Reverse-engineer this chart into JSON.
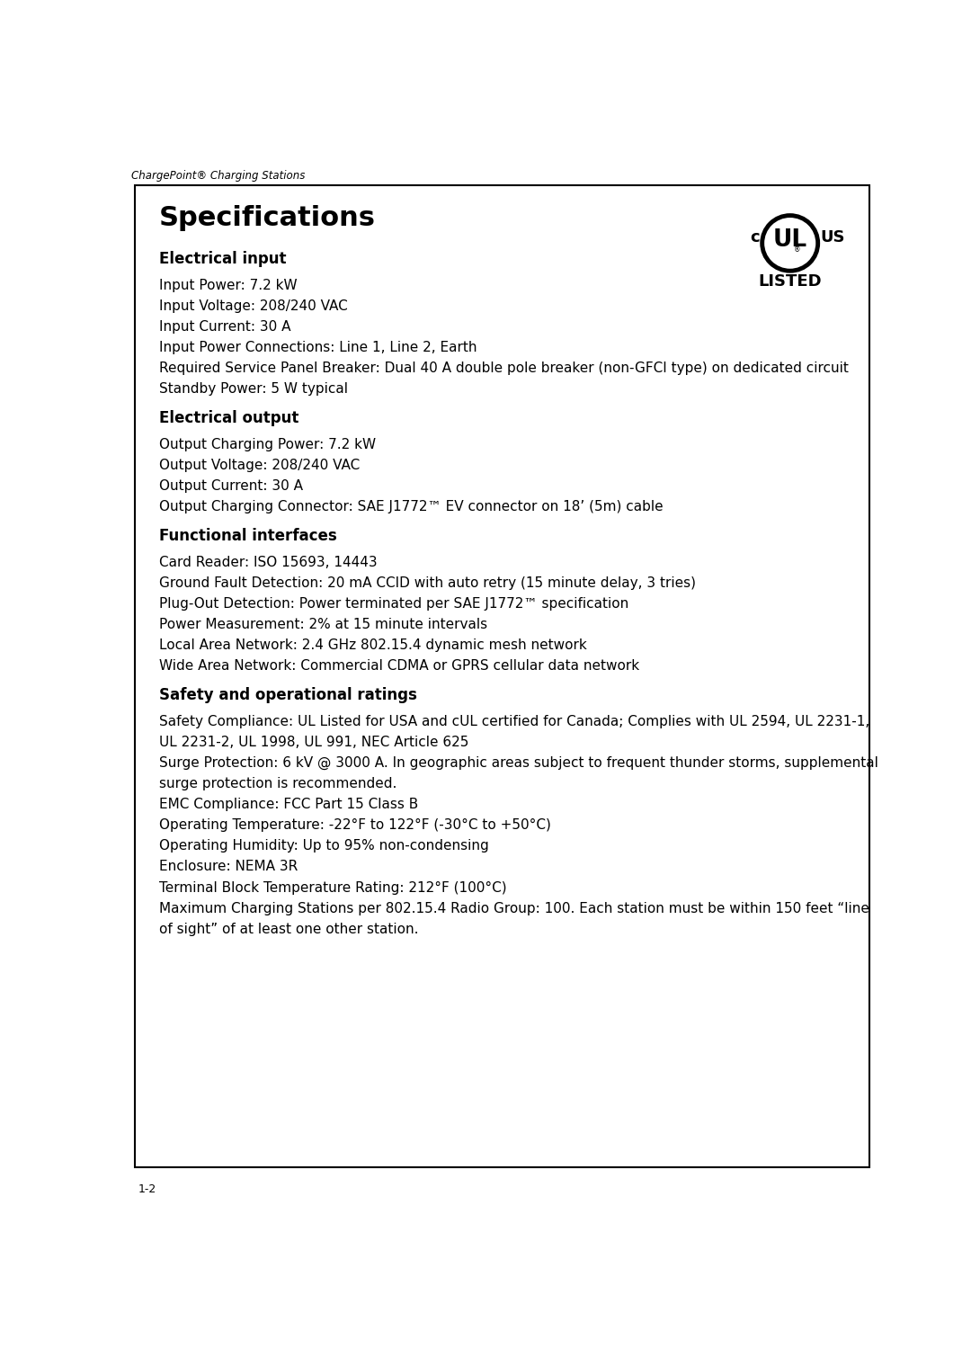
{
  "header_text": "ChargePoint® Charging Stations",
  "page_number": "1-2",
  "title": "Specifications",
  "bg_color": "#ffffff",
  "border_color": "#000000",
  "title_color": "#000000",
  "title_fontsize": 22,
  "section_fontsize": 12,
  "body_fontsize": 11,
  "sections": [
    {
      "heading": "Electrical input",
      "items": [
        "Input Power: 7.2 kW",
        "Input Voltage: 208/240 VAC",
        "Input Current: 30 A",
        "Input Power Connections: Line 1, Line 2, Earth",
        "Required Service Panel Breaker: Dual 40 A double pole breaker (non-GFCI type) on dedicated circuit",
        "Standby Power: 5 W typical"
      ]
    },
    {
      "heading": "Electrical output",
      "items": [
        "Output Charging Power: 7.2 kW",
        "Output Voltage: 208/240 VAC",
        "Output Current: 30 A",
        "Output Charging Connector: SAE J1772™ EV connector on 18’ (5m) cable"
      ]
    },
    {
      "heading": "Functional interfaces",
      "items": [
        "Card Reader: ISO 15693, 14443",
        "Ground Fault Detection: 20 mA CCID with auto retry (15 minute delay, 3 tries)",
        "Plug-Out Detection: Power terminated per SAE J1772™ specification",
        "Power Measurement: 2% at 15 minute intervals",
        "Local Area Network: 2.4 GHz 802.15.4 dynamic mesh network",
        "Wide Area Network: Commercial CDMA or GPRS cellular data network"
      ]
    },
    {
      "heading": "Safety and operational ratings",
      "items": [
        "Safety Compliance: UL Listed for USA and cUL certified for Canada; Complies with UL 2594, UL 2231-1,\nUL 2231-2, UL 1998, UL 991, NEC Article 625",
        "Surge Protection: 6 kV @ 3000 A. In geographic areas subject to frequent thunder storms, supplemental\nsurge protection is recommended.",
        "EMC Compliance: FCC Part 15 Class B",
        "Operating Temperature: -22°F to 122°F (-30°C to +50°C)",
        "Operating Humidity: Up to 95% non-condensing",
        "Enclosure: NEMA 3R",
        "Terminal Block Temperature Rating: 212°F (100°C)",
        "Maximum Charging Stations per 802.15.4 Radio Group: 100. Each station must be within 150 feet “line\nof sight” of at least one other station."
      ]
    }
  ]
}
